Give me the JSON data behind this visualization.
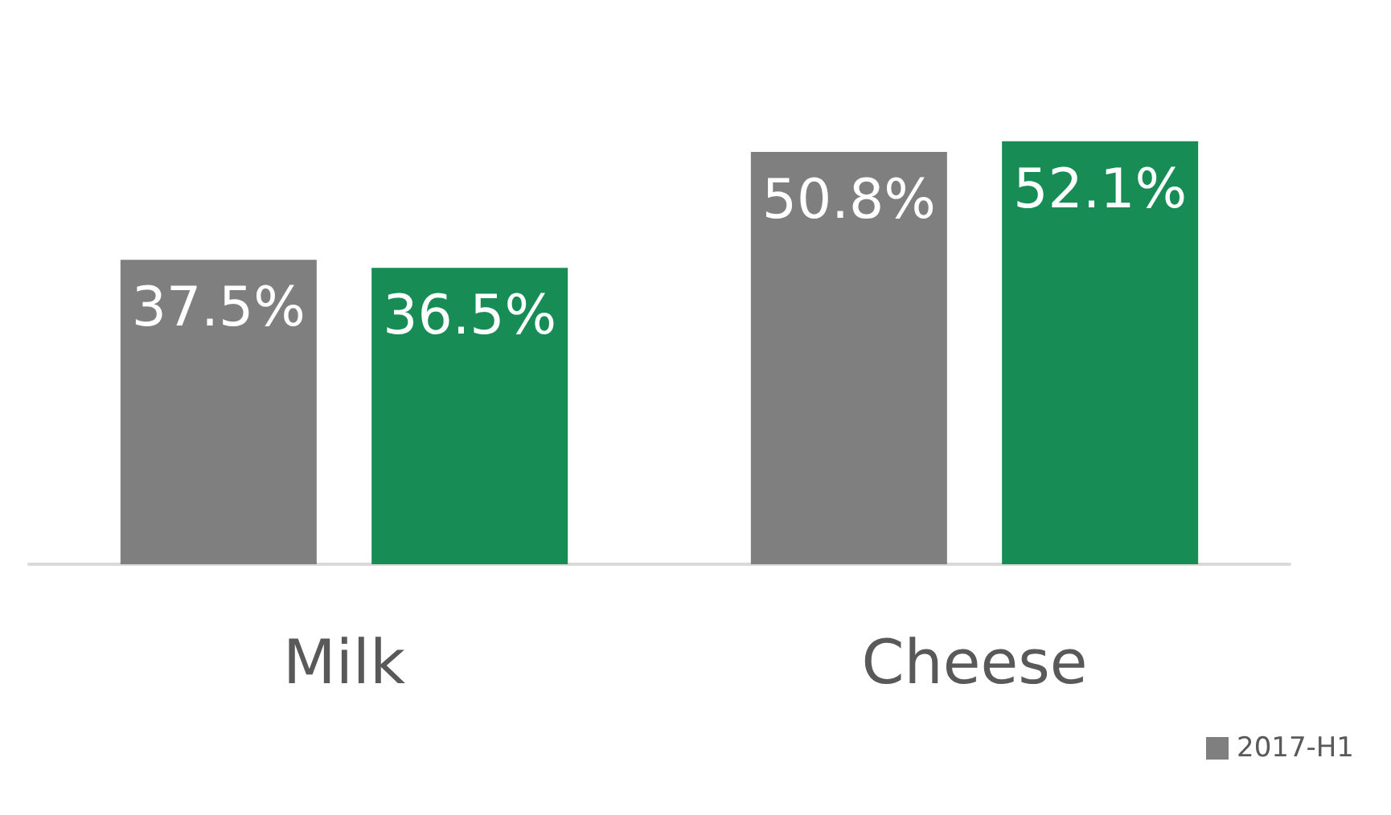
{
  "chart_data": {
    "type": "bar",
    "categories": [
      "Milk",
      "Cheese"
    ],
    "series": [
      {
        "name": "2017-H1",
        "color": "#7f7f7f",
        "values": [
          37.5,
          50.8
        ],
        "value_labels": [
          "37.5%",
          "50.8%"
        ]
      },
      {
        "color": "#188c55",
        "values": [
          36.5,
          52.1
        ],
        "value_labels": [
          "36.5%",
          "52.1%"
        ]
      }
    ],
    "legend": "bottom right",
    "grid": false
  }
}
